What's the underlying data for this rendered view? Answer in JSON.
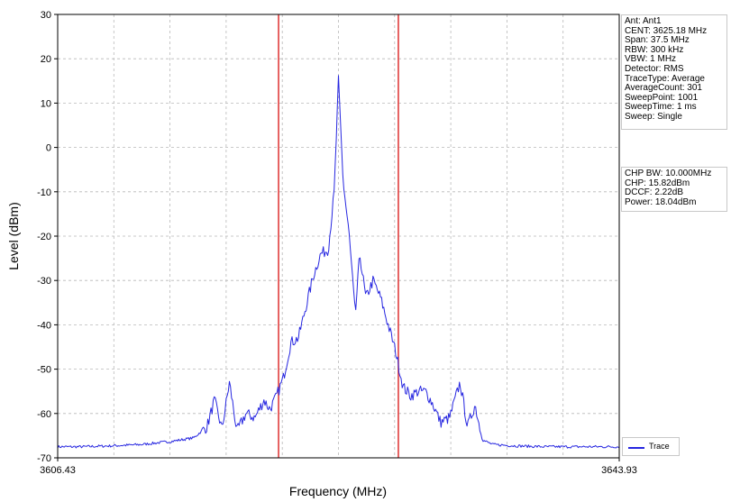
{
  "chart_data": {
    "type": "line",
    "xlabel": "Frequency (MHz)",
    "ylabel": "Level (dBm)",
    "xlim": [
      3606.43,
      3643.93
    ],
    "ylim": [
      -70,
      30
    ],
    "x_tick_labels": [
      "3606.43",
      "3643.93"
    ],
    "y_ticks": [
      30,
      20,
      10,
      0,
      -10,
      -20,
      -30,
      -40,
      -50,
      -60,
      -70
    ],
    "grid": true,
    "grid_x_divisions": 10,
    "legend_position": "bottom-right",
    "series": [
      {
        "name": "Trace",
        "color": "#2626e0",
        "x": [
          3606.43,
          3608.0,
          3610.0,
          3612.0,
          3614.0,
          3615.5,
          3616.4,
          3616.9,
          3617.4,
          3617.9,
          3618.4,
          3619.0,
          3619.6,
          3620.2,
          3620.6,
          3621.0,
          3621.5,
          3622.0,
          3622.5,
          3623.0,
          3623.5,
          3624.0,
          3624.5,
          3624.9,
          3625.18,
          3625.5,
          3625.9,
          3626.3,
          3626.6,
          3627.0,
          3627.5,
          3628.0,
          3628.5,
          3629.0,
          3629.5,
          3630.0,
          3630.5,
          3631.0,
          3631.5,
          3632.0,
          3632.6,
          3633.3,
          3633.8,
          3634.3,
          3634.8,
          3635.5,
          3637.0,
          3639.0,
          3641.0,
          3643.93
        ],
        "y": [
          -67.5,
          -67.5,
          -67.3,
          -67.0,
          -66.3,
          -65.5,
          -63.0,
          -57.0,
          -63.5,
          -53.0,
          -64.0,
          -60.0,
          -61.0,
          -57.0,
          -59.0,
          -56.5,
          -52.0,
          -44.0,
          -43.0,
          -36.0,
          -29.0,
          -24.0,
          -23.0,
          -10.0,
          15.0,
          -8.0,
          -20.0,
          -38.0,
          -24.0,
          -34.0,
          -30.0,
          -34.0,
          -40.0,
          -46.0,
          -54.0,
          -56.0,
          -55.0,
          -55.0,
          -58.0,
          -62.0,
          -61.0,
          -53.0,
          -63.0,
          -58.0,
          -66.0,
          -67.0,
          -67.3,
          -67.5,
          -67.5,
          -67.5
        ]
      }
    ],
    "markers": [
      {
        "x": 3621.18,
        "color": "#e03c3c"
      },
      {
        "x": 3629.18,
        "color": "#e03c3c"
      }
    ],
    "settings_info": [
      "Ant: Ant1",
      "CENT: 3625.18 MHz",
      "Span: 37.5 MHz",
      "RBW: 300 kHz",
      "VBW: 1 MHz",
      "Detector: RMS",
      "TraceType: Average",
      "AverageCount: 301",
      "SweepPoint: 1001",
      "SweepTime: 1 ms",
      "Sweep: Single"
    ],
    "measurement_info": [
      "CHP BW: 10.000MHz",
      "CHP: 15.82dBm",
      "DCCF: 2.22dB",
      "Power: 18.04dBm"
    ]
  }
}
